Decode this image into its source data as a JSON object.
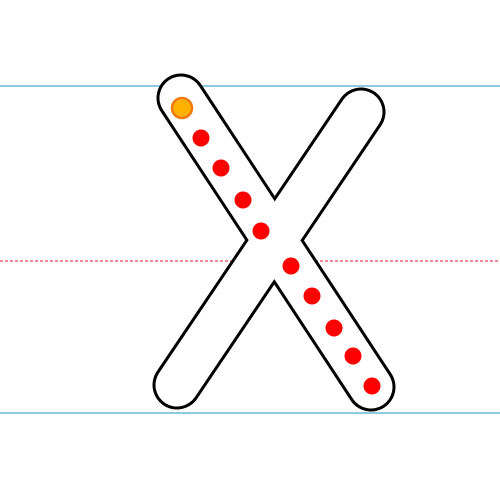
{
  "activity": {
    "letter": "X",
    "total_dots": 10,
    "start_marker": "start-dot"
  },
  "colors": {
    "background": "#ffffff",
    "guide_line": "#6fb7d8",
    "midline": "#e0465a",
    "letter_fill": "#ffffff",
    "letter_outline": "#000000",
    "trace_dot": "#ff0000",
    "start_dot_fill": "#ffb300",
    "start_dot_ring": "#f07a10"
  }
}
